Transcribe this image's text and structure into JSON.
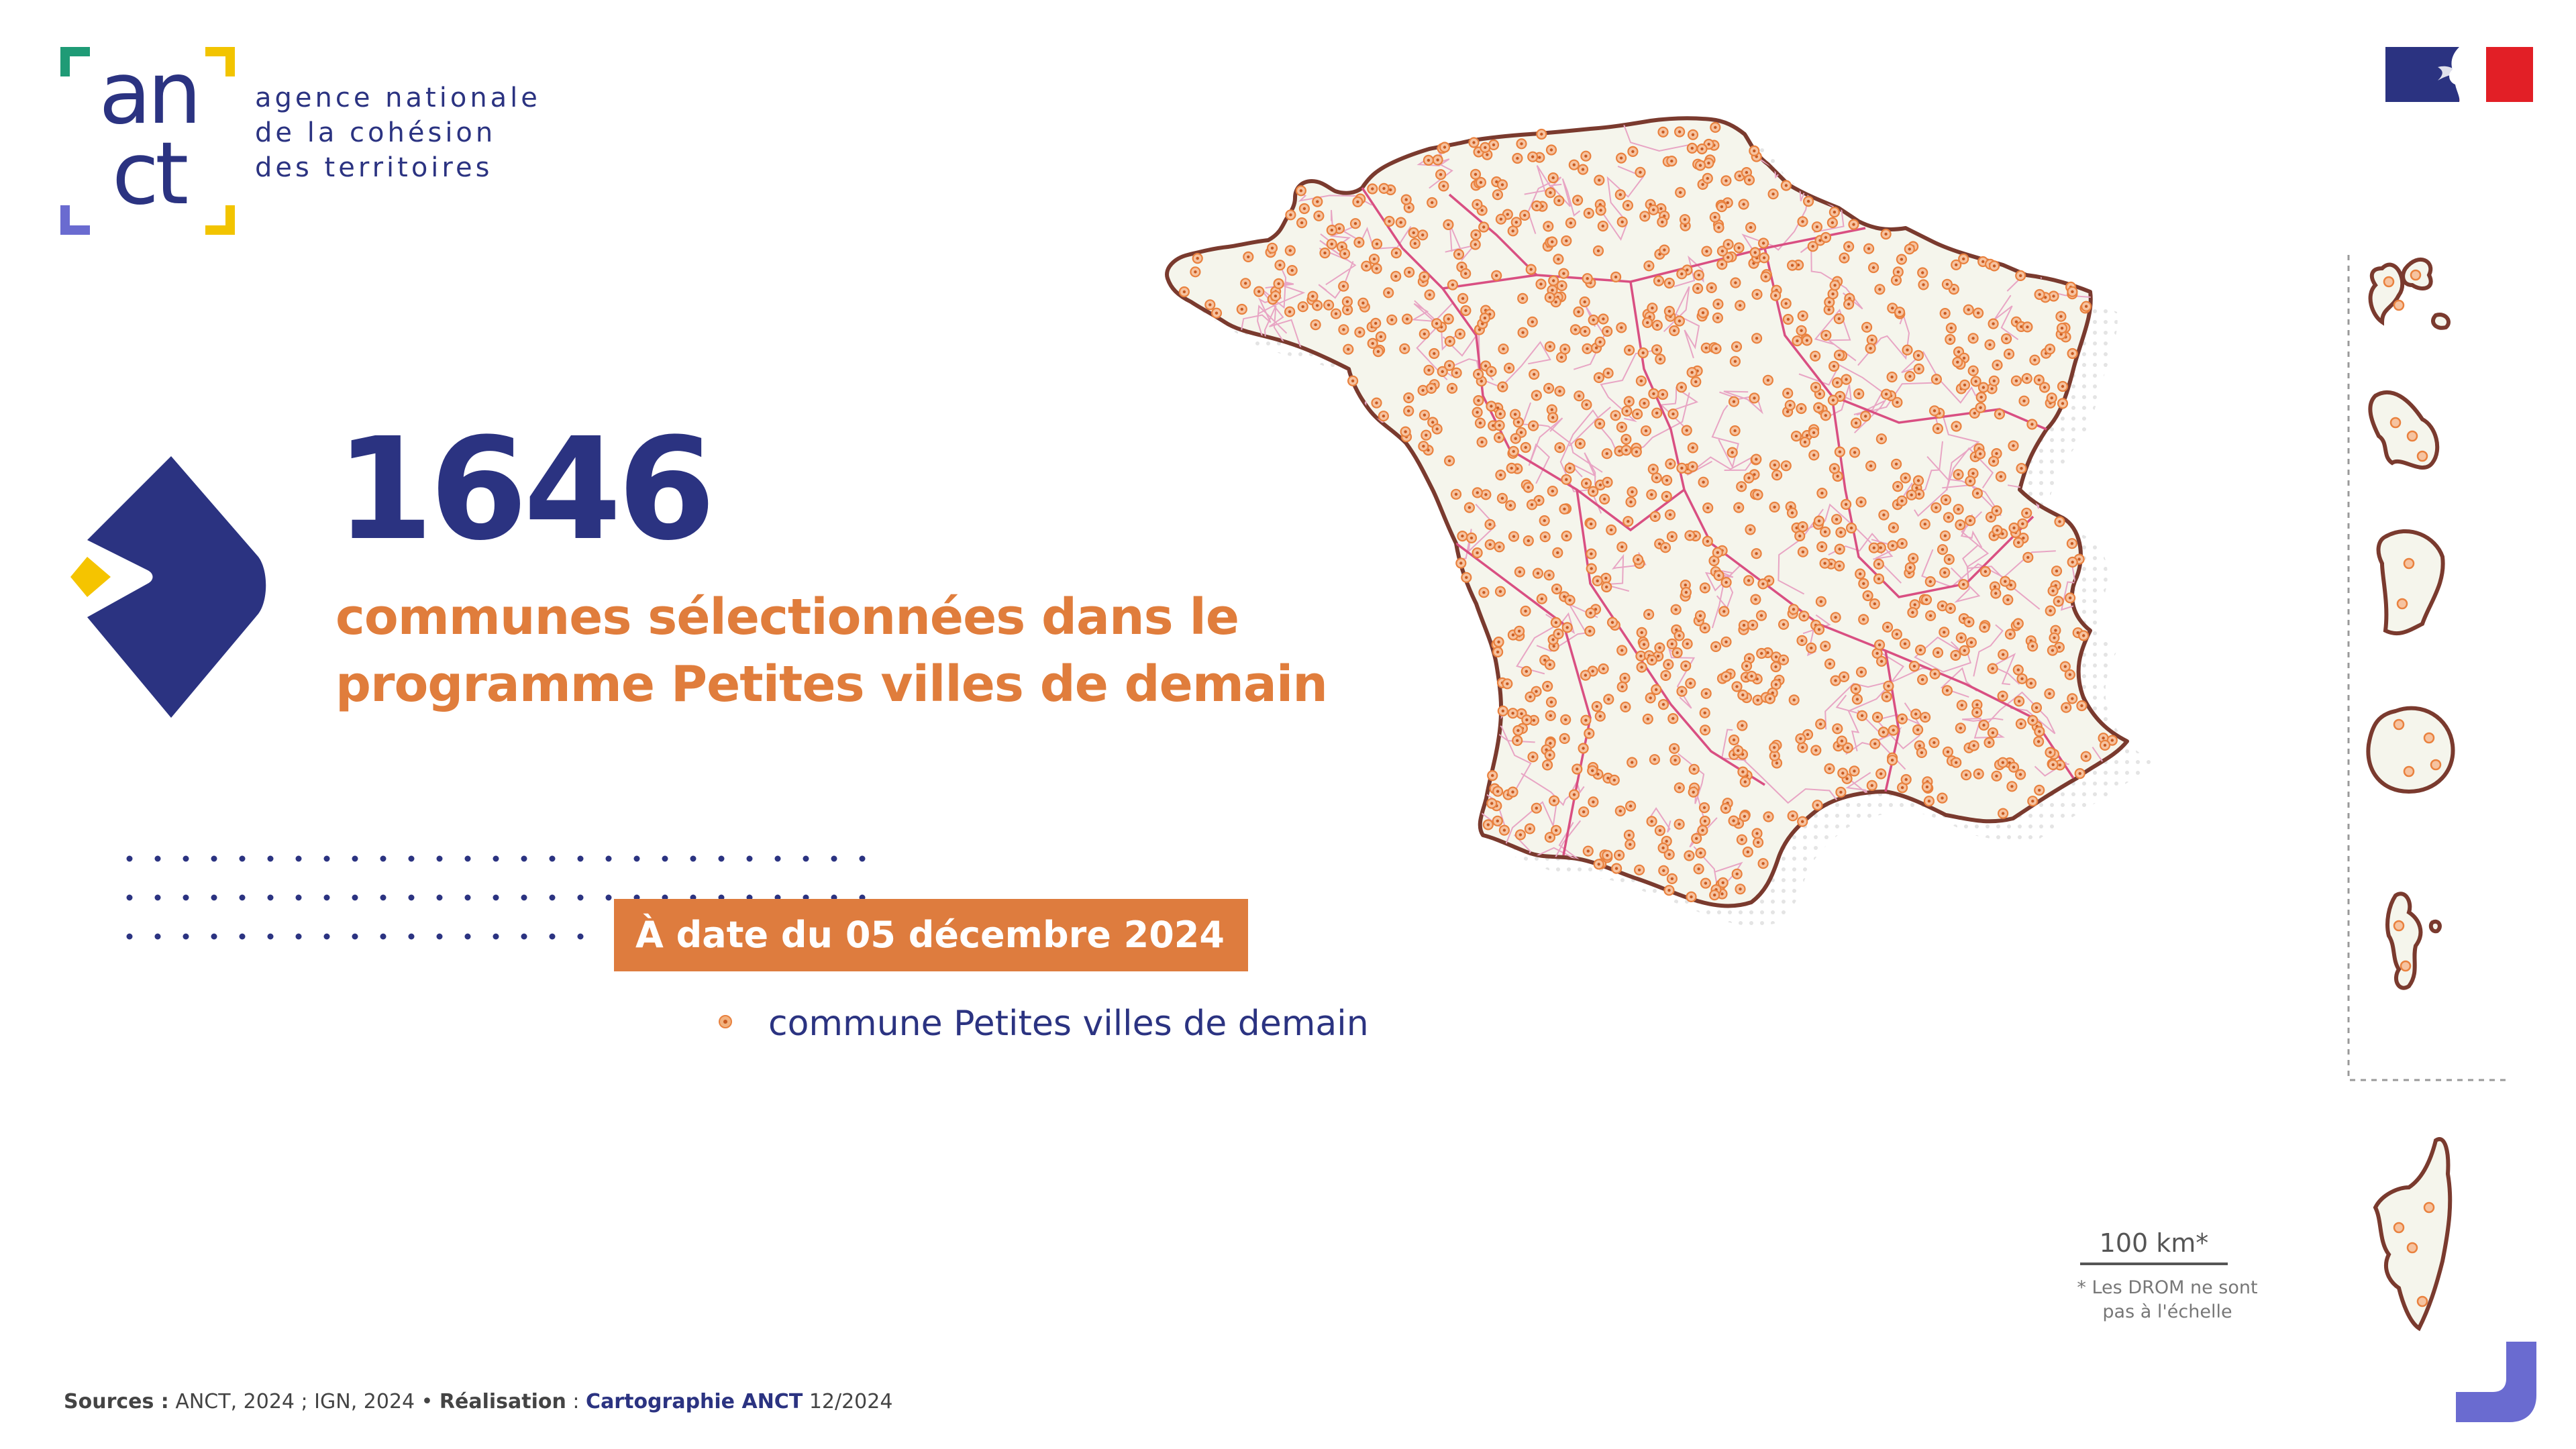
{
  "logo": {
    "line1": "an",
    "line2": "ct"
  },
  "agency_name": [
    "agence nationale",
    "de la cohésion",
    "des territoires"
  ],
  "headline": {
    "count": "1646",
    "subtitle_lines": [
      "communes sélectionnées dans le",
      "programme Petites villes de demain"
    ]
  },
  "date_label": "À date du 05 décembre 2024",
  "legend": {
    "label": "commune Petites villes de demain",
    "icon": "orange-dot-icon"
  },
  "scale": {
    "label": "100 km*",
    "note_lines": [
      "* Les DROM ne sont",
      "pas à l'échelle"
    ]
  },
  "sources": {
    "sources_label": "Sources :",
    "sources_text": " ANCT, 2024 ; IGN, 2024 • ",
    "realisation_label": "Réalisation",
    "realisation_sep": " : ",
    "realisation_text": "Cartographie ANCT",
    "realisation_date": " 12/2024"
  },
  "colors": {
    "navy": "#2b3381",
    "orange": "#e07d3c",
    "map_fill": "#f5f5ec",
    "border": "#7a3a2e",
    "region_lines": "#d94f82",
    "dot": "#e9813e"
  }
}
